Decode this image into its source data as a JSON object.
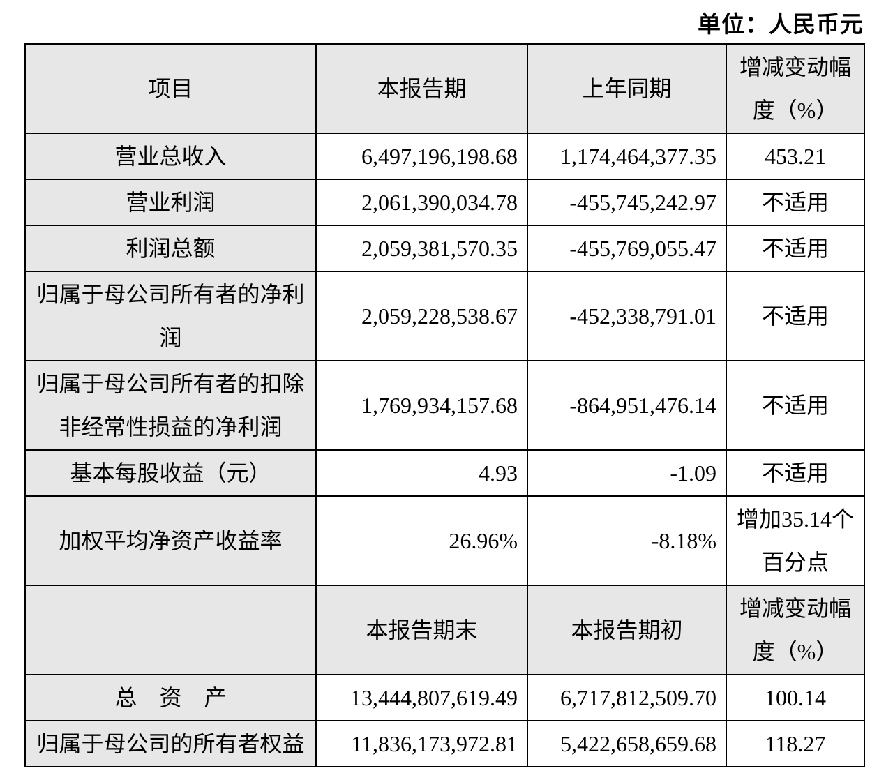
{
  "page": {
    "unit_label": "单位：人民币元"
  },
  "colors": {
    "header_bg": "#e7e7e7",
    "label_bg": "#e7e7e7",
    "border": "#000000",
    "text": "#000000",
    "page_bg": "#ffffff"
  },
  "table": {
    "header_period": {
      "item": "项目",
      "current": "本报告期",
      "prior": "上年同期",
      "change": "增减变动幅\n度（%）"
    },
    "rows_period": [
      {
        "label": "营业总收入",
        "current": "6,497,196,198.68",
        "prior": "1,174,464,377.35",
        "change": "453.21"
      },
      {
        "label": "营业利润",
        "current": "2,061,390,034.78",
        "prior": "-455,745,242.97",
        "change": "不适用"
      },
      {
        "label": "利润总额",
        "current": "2,059,381,570.35",
        "prior": "-455,769,055.47",
        "change": "不适用"
      },
      {
        "label": "归属于母公司所有者的净利\n润",
        "current": "2,059,228,538.67",
        "prior": "-452,338,791.01",
        "change": "不适用"
      },
      {
        "label": "归属于母公司所有者的扣除\n非经常性损益的净利润",
        "current": "1,769,934,157.68",
        "prior": "-864,951,476.14",
        "change": "不适用"
      },
      {
        "label": "基本每股收益（元）",
        "current": "4.93",
        "prior": "-1.09",
        "change": "不适用"
      },
      {
        "label": "加权平均净资产收益率",
        "current": "26.96%",
        "prior": "-8.18%",
        "change": "增加35.14个\n百分点"
      }
    ],
    "header_balance": {
      "item": "",
      "current": "本报告期末",
      "prior": "本报告期初",
      "change": "增减变动幅\n度（%）"
    },
    "rows_balance": [
      {
        "label": "总　资　产",
        "current": "13,444,807,619.49",
        "prior": "6,717,812,509.70",
        "change": "100.14"
      },
      {
        "label": "归属于母公司的所有者权益",
        "current": "11,836,173,972.81",
        "prior": "5,422,658,659.68",
        "change": "118.27"
      }
    ]
  }
}
